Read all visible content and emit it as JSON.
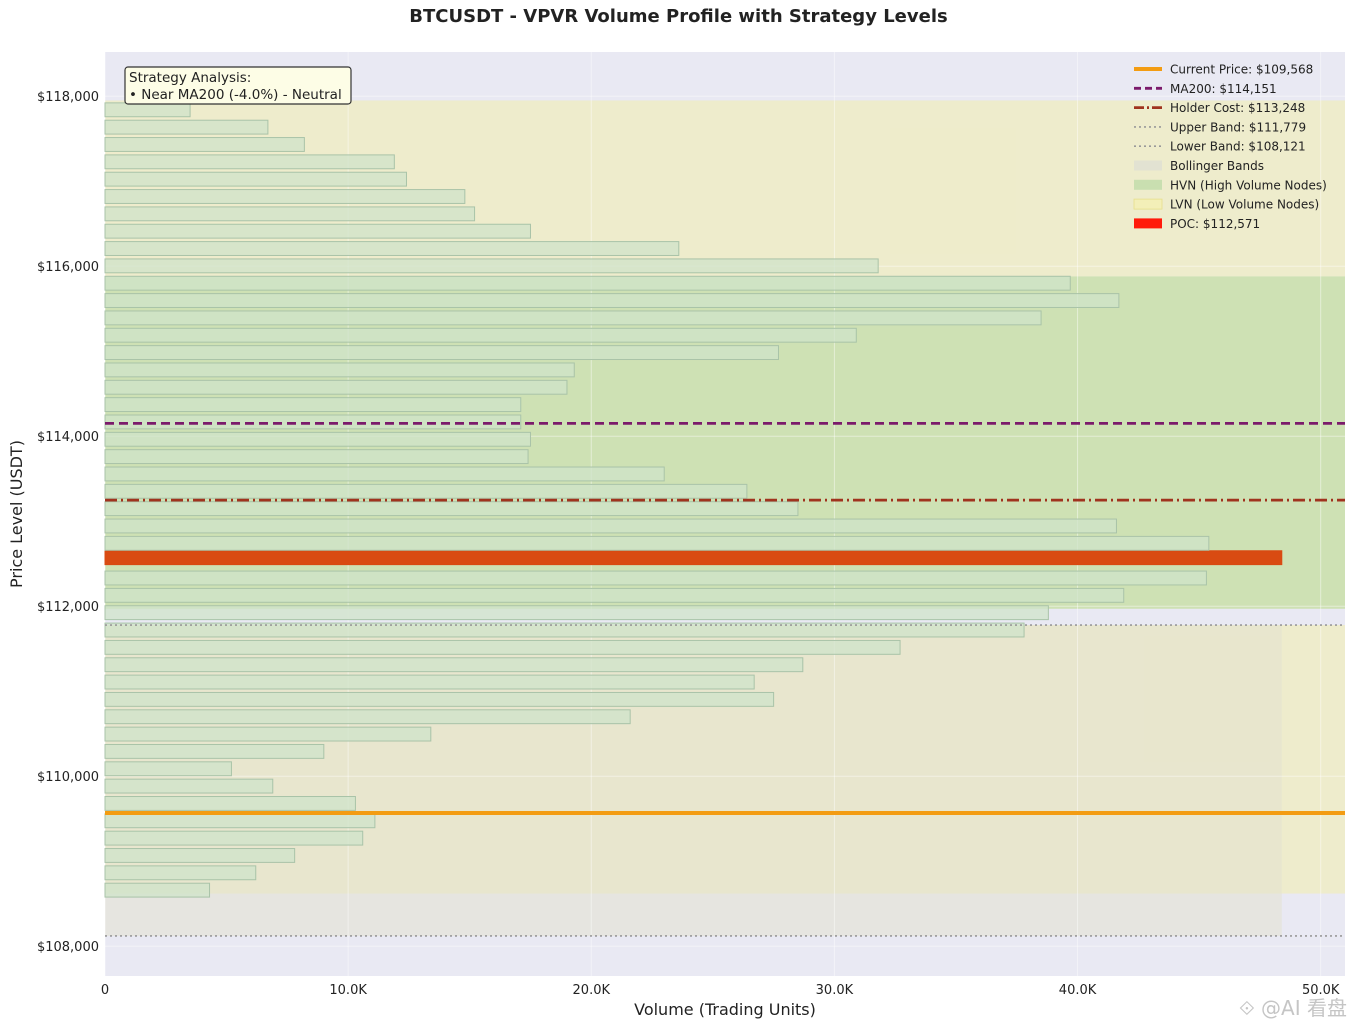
{
  "chart_data": {
    "type": "bar",
    "orientation": "horizontal",
    "title": "BTCUSDT - VPVR Volume Profile with Strategy Levels",
    "xlabel": "Volume (Trading Units)",
    "ylabel": "Price Level (USDT)",
    "xlim": [
      0,
      51000
    ],
    "ylim": [
      107650,
      118520
    ],
    "x_ticks": [
      {
        "value": 0,
        "label": "0"
      },
      {
        "value": 10000,
        "label": "10.0K"
      },
      {
        "value": 20000,
        "label": "20.0K"
      },
      {
        "value": 30000,
        "label": "30.0K"
      },
      {
        "value": 40000,
        "label": "40.0K"
      },
      {
        "value": 50000,
        "label": "50.0K"
      }
    ],
    "y_ticks": [
      {
        "value": 108000,
        "label": "$108,000"
      },
      {
        "value": 110000,
        "label": "$110,000"
      },
      {
        "value": 112000,
        "label": "$112,000"
      },
      {
        "value": 114000,
        "label": "$114,000"
      },
      {
        "value": 116000,
        "label": "$116,000"
      },
      {
        "value": 118000,
        "label": "$118,000"
      }
    ],
    "grid": true,
    "bin_width": 204,
    "bins": [
      {
        "price": 108660,
        "volume": 4300
      },
      {
        "price": 108864,
        "volume": 6200
      },
      {
        "price": 109068,
        "volume": 7800
      },
      {
        "price": 109272,
        "volume": 10600
      },
      {
        "price": 109476,
        "volume": 11100
      },
      {
        "price": 109680,
        "volume": 10300
      },
      {
        "price": 109884,
        "volume": 6900
      },
      {
        "price": 110088,
        "volume": 5200
      },
      {
        "price": 110292,
        "volume": 9000
      },
      {
        "price": 110496,
        "volume": 13400
      },
      {
        "price": 110700,
        "volume": 21600
      },
      {
        "price": 110904,
        "volume": 27500
      },
      {
        "price": 111108,
        "volume": 26700
      },
      {
        "price": 111312,
        "volume": 28700
      },
      {
        "price": 111516,
        "volume": 32700
      },
      {
        "price": 111720,
        "volume": 37800
      },
      {
        "price": 111924,
        "volume": 38800
      },
      {
        "price": 112128,
        "volume": 41900
      },
      {
        "price": 112332,
        "volume": 45300
      },
      {
        "price": 112571,
        "volume": 48400,
        "poc": true
      },
      {
        "price": 112740,
        "volume": 45400
      },
      {
        "price": 112944,
        "volume": 41600
      },
      {
        "price": 113148,
        "volume": 28500
      },
      {
        "price": 113352,
        "volume": 26400
      },
      {
        "price": 113556,
        "volume": 23000
      },
      {
        "price": 113760,
        "volume": 17400
      },
      {
        "price": 113964,
        "volume": 17500
      },
      {
        "price": 114168,
        "volume": 17100
      },
      {
        "price": 114372,
        "volume": 17100
      },
      {
        "price": 114576,
        "volume": 19000
      },
      {
        "price": 114780,
        "volume": 19300
      },
      {
        "price": 114984,
        "volume": 27700
      },
      {
        "price": 115188,
        "volume": 30900
      },
      {
        "price": 115392,
        "volume": 38500
      },
      {
        "price": 115596,
        "volume": 41700
      },
      {
        "price": 115800,
        "volume": 39700
      },
      {
        "price": 116004,
        "volume": 31800
      },
      {
        "price": 116208,
        "volume": 23600
      },
      {
        "price": 116412,
        "volume": 17500
      },
      {
        "price": 116616,
        "volume": 15200
      },
      {
        "price": 116820,
        "volume": 14800
      },
      {
        "price": 117024,
        "volume": 12400
      },
      {
        "price": 117228,
        "volume": 11900
      },
      {
        "price": 117432,
        "volume": 8200
      },
      {
        "price": 117636,
        "volume": 6700
      },
      {
        "price": 117840,
        "volume": 3500
      }
    ],
    "levels": {
      "current_price": 109568,
      "ma200": 114151,
      "holder_cost": 113248,
      "upper_band": 111779,
      "lower_band": 108121,
      "poc": 112571
    },
    "bollinger_shade": {
      "low": 108121,
      "high": 111779,
      "x_max": 48400
    },
    "hvn_zone": {
      "low": 111970,
      "high": 115880
    },
    "lvn_zones": [
      {
        "low": 108620,
        "high": 111779
      },
      {
        "low": 115880,
        "high": 117950
      }
    ],
    "legend_placement": "top-right",
    "legend": [
      {
        "label": "Current Price: $109,568",
        "style": "solid-line",
        "color": "#f39c12"
      },
      {
        "label": "MA200: $114,151",
        "style": "dashed-line",
        "color": "#7b1a6b"
      },
      {
        "label": "Holder Cost: $113,248",
        "style": "dashdot-line",
        "color": "#a0331e"
      },
      {
        "label": "Upper Band: $111,779",
        "style": "dotted-line",
        "color": "#999999"
      },
      {
        "label": "Lower Band: $108,121",
        "style": "dotted-line",
        "color": "#999999"
      },
      {
        "label": "Bollinger Bands",
        "style": "patch",
        "color": "#e2e2d2"
      },
      {
        "label": "HVN (High Volume Nodes)",
        "style": "patch",
        "color": "#c9dfb0"
      },
      {
        "label": "LVN (Low Volume Nodes)",
        "style": "hatch-patch",
        "color": "#f3efb8"
      },
      {
        "label": "POC: $112,571",
        "style": "patch",
        "color": "#ff1a0a"
      }
    ],
    "annotation": {
      "title": "Strategy Analysis:",
      "line": "• Near MA200 (-4.0%) - Neutral"
    },
    "colors": {
      "plot_bg": "#e9e9f3",
      "bar_fill": "#cfe3c9",
      "bar_stroke": "#a9c3a8",
      "poc_bar": "#d94b12",
      "hvn": "#c9dfa8",
      "lvn": "#efecc4",
      "bollinger": "#e3e1cf",
      "current_price": "#f39c12",
      "ma200": "#7b1a6b",
      "holder_cost": "#a0331e",
      "band": "#999999"
    }
  },
  "watermark": "⟐ @AI 看盘"
}
